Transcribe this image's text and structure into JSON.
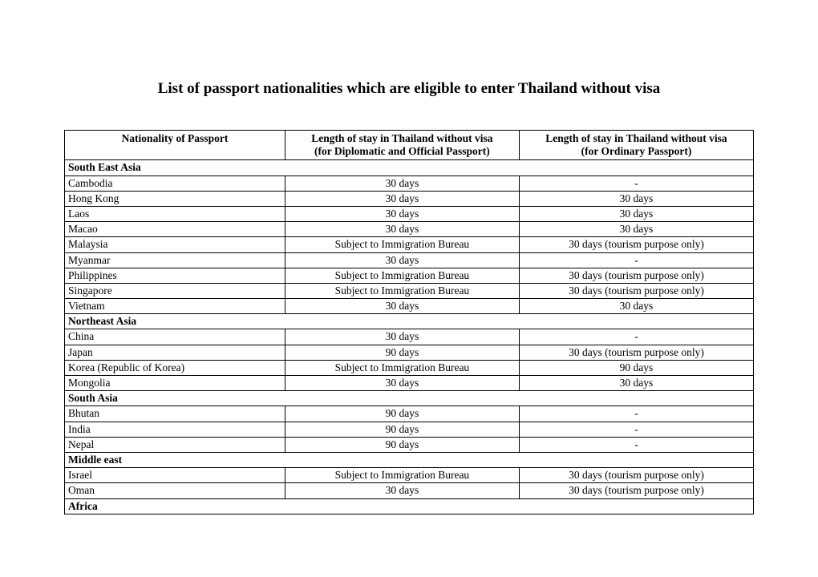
{
  "title": "List of passport nationalities which are eligible to enter Thailand without visa",
  "columns": {
    "nationality": "Nationality of Passport",
    "diplomatic_line1": "Length of stay in Thailand without visa",
    "diplomatic_line2": "(for Diplomatic and Official Passport)",
    "ordinary_line1": "Length of stay in Thailand without visa",
    "ordinary_line2": "(for Ordinary Passport)"
  },
  "rows": [
    {
      "type": "region",
      "label": "South East Asia"
    },
    {
      "type": "country",
      "nat": "Cambodia",
      "dip": "30 days",
      "ord": "-"
    },
    {
      "type": "country",
      "nat": "Hong Kong",
      "dip": "30 days",
      "ord": "30 days"
    },
    {
      "type": "country",
      "nat": "Laos",
      "dip": "30 days",
      "ord": "30 days"
    },
    {
      "type": "country",
      "nat": "Macao",
      "dip": "30 days",
      "ord": "30 days"
    },
    {
      "type": "country",
      "nat": "Malaysia",
      "dip": "Subject to Immigration Bureau",
      "ord": "30 days (tourism purpose only)"
    },
    {
      "type": "country",
      "nat": "Myanmar",
      "dip": "30 days",
      "ord": "-"
    },
    {
      "type": "country",
      "nat": "Philippines",
      "dip": "Subject to Immigration Bureau",
      "ord": "30 days (tourism purpose only)"
    },
    {
      "type": "country",
      "nat": "Singapore",
      "dip": "Subject to Immigration Bureau",
      "ord": "30 days (tourism purpose only)"
    },
    {
      "type": "country",
      "nat": "Vietnam",
      "dip": "30 days",
      "ord": "30 days"
    },
    {
      "type": "region",
      "label": "Northeast Asia"
    },
    {
      "type": "country",
      "nat": "China",
      "dip": "30 days",
      "ord": "-"
    },
    {
      "type": "country",
      "nat": "Japan",
      "dip": "90 days",
      "ord": "30 days (tourism purpose only)"
    },
    {
      "type": "country",
      "nat": "Korea (Republic of Korea)",
      "dip": "Subject to Immigration Bureau",
      "ord": "90 days"
    },
    {
      "type": "country",
      "nat": "Mongolia",
      "dip": "30 days",
      "ord": "30 days"
    },
    {
      "type": "region",
      "label": "South Asia"
    },
    {
      "type": "country",
      "nat": "Bhutan",
      "dip": "90 days",
      "ord": "-"
    },
    {
      "type": "country",
      "nat": "India",
      "dip": "90 days",
      "ord": "-"
    },
    {
      "type": "country",
      "nat": "Nepal",
      "dip": "90 days",
      "ord": "-"
    },
    {
      "type": "region",
      "label": "Middle east"
    },
    {
      "type": "country",
      "nat": "Israel",
      "dip": "Subject to Immigration Bureau",
      "ord": "30 days (tourism purpose only)"
    },
    {
      "type": "country",
      "nat": "Oman",
      "dip": "30 days",
      "ord": "30 days (tourism purpose only)"
    },
    {
      "type": "region",
      "label": "Africa"
    }
  ]
}
